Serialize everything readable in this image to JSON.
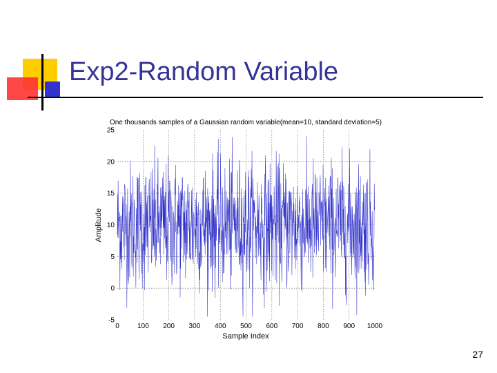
{
  "slide": {
    "title": "Exp2-Random Variable",
    "page_number": "27",
    "colors": {
      "title": "#333399",
      "accent_yellow": "#FFCC00",
      "accent_red": "#FF3333",
      "accent_blue": "#3333CC"
    }
  },
  "chart_data": {
    "type": "line",
    "title": "One thousands samples of a Gaussian random variable(mean=10, standard deviation=5)",
    "xlabel": "Sample Index",
    "ylabel": "Amplitude",
    "xlim": [
      0,
      1000
    ],
    "ylim": [
      -5,
      25
    ],
    "xticks": [
      "0",
      "100",
      "200",
      "300",
      "400",
      "500",
      "600",
      "700",
      "800",
      "900",
      "1000"
    ],
    "yticks": [
      "25",
      "20",
      "15",
      "10",
      "5",
      "0",
      "-5"
    ],
    "grid": true,
    "series": [
      {
        "name": "",
        "color": "#3333CC",
        "mean": 10,
        "std": 5,
        "count": 1000
      }
    ]
  }
}
